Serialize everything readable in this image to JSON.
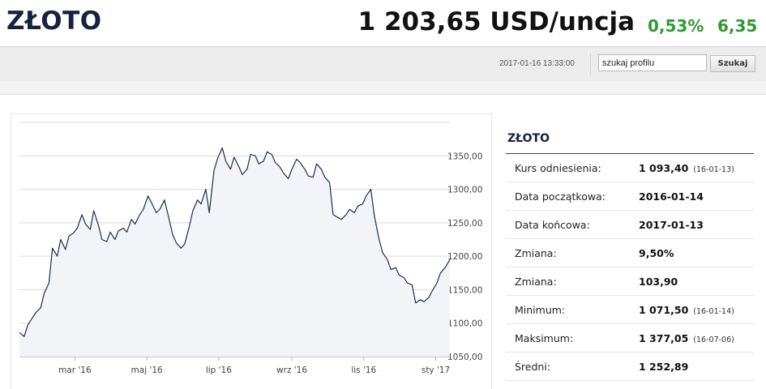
{
  "header": {
    "title": "ZŁOTO",
    "price": "1 203,65 USD/uncja",
    "change_pct": "0,53%",
    "change_abs": "6,35"
  },
  "info_bar": {
    "timestamp": "2017-01-16 13:33:00",
    "search_value": "szukaj profilu",
    "search_button": "Szukaj"
  },
  "colors": {
    "title": "#14233f",
    "positive_change": "#2f9a33",
    "chart_line": "#1f2d4a",
    "chart_fill": "#f2f4f8"
  },
  "stats": {
    "title": "ZŁOTO",
    "rows": [
      {
        "label": "Kurs odniesienia:",
        "value": "1 093,40",
        "date": "(16-01-13)"
      },
      {
        "label": "Data początkowa:",
        "value": "2016-01-14",
        "date": ""
      },
      {
        "label": "Data końcowa:",
        "value": "2017-01-13",
        "date": ""
      },
      {
        "label": "Zmiana:",
        "value": "9,50%",
        "date": ""
      },
      {
        "label": "Zmiana:",
        "value": "103,90",
        "date": ""
      },
      {
        "label": "Minimum:",
        "value": "1 071,50",
        "date": "(16-01-14)"
      },
      {
        "label": "Maksimum:",
        "value": "1 377,05",
        "date": "(16-07-06)"
      },
      {
        "label": "Średni:",
        "value": "1 252,89",
        "date": ""
      }
    ]
  },
  "chart_data": {
    "type": "area",
    "title": "",
    "xlabel": "",
    "ylabel": "",
    "ylim": [
      1050,
      1400
    ],
    "yticks": [
      1050,
      1100,
      1150,
      1200,
      1250,
      1300,
      1350
    ],
    "ytick_labels": [
      "1050,00",
      "1100,00",
      "1150,00",
      "1200,00",
      "1250,00",
      "1300,00",
      "1350,00"
    ],
    "xtick_labels": [
      "mar '16",
      "maj '16",
      "lip '16",
      "wrz '16",
      "lis '16",
      "sty '17"
    ],
    "xtick_dates": [
      "2016-03-01",
      "2016-05-01",
      "2016-07-01",
      "2016-09-01",
      "2016-11-01",
      "2017-01-01"
    ],
    "x_start": "2016-01-14",
    "x_end": "2017-01-13",
    "grid": true,
    "series": [
      {
        "x": [
          "2016-01-14",
          "2016-01-18",
          "2016-01-21",
          "2016-01-25",
          "2016-01-28",
          "2016-02-01",
          "2016-02-04",
          "2016-02-08",
          "2016-02-11",
          "2016-02-15",
          "2016-02-18",
          "2016-02-22",
          "2016-02-25",
          "2016-02-29",
          "2016-03-03",
          "2016-03-07",
          "2016-03-10",
          "2016-03-14",
          "2016-03-17",
          "2016-03-21",
          "2016-03-24",
          "2016-03-28",
          "2016-03-31",
          "2016-04-04",
          "2016-04-07",
          "2016-04-11",
          "2016-04-14",
          "2016-04-18",
          "2016-04-21",
          "2016-04-25",
          "2016-04-28",
          "2016-05-02",
          "2016-05-05",
          "2016-05-09",
          "2016-05-12",
          "2016-05-16",
          "2016-05-19",
          "2016-05-23",
          "2016-05-26",
          "2016-05-30",
          "2016-06-02",
          "2016-06-06",
          "2016-06-09",
          "2016-06-13",
          "2016-06-16",
          "2016-06-20",
          "2016-06-23",
          "2016-06-27",
          "2016-06-30",
          "2016-07-04",
          "2016-07-07",
          "2016-07-11",
          "2016-07-14",
          "2016-07-18",
          "2016-07-21",
          "2016-07-25",
          "2016-07-28",
          "2016-08-01",
          "2016-08-04",
          "2016-08-08",
          "2016-08-11",
          "2016-08-15",
          "2016-08-18",
          "2016-08-22",
          "2016-08-25",
          "2016-08-29",
          "2016-09-01",
          "2016-09-05",
          "2016-09-08",
          "2016-09-12",
          "2016-09-15",
          "2016-09-19",
          "2016-09-22",
          "2016-09-26",
          "2016-09-29",
          "2016-10-03",
          "2016-10-06",
          "2016-10-10",
          "2016-10-13",
          "2016-10-17",
          "2016-10-20",
          "2016-10-24",
          "2016-10-27",
          "2016-10-31",
          "2016-11-03",
          "2016-11-07",
          "2016-11-10",
          "2016-11-14",
          "2016-11-17",
          "2016-11-21",
          "2016-11-24",
          "2016-11-28",
          "2016-12-01",
          "2016-12-05",
          "2016-12-08",
          "2016-12-12",
          "2016-12-15",
          "2016-12-19",
          "2016-12-22",
          "2016-12-26",
          "2016-12-29",
          "2017-01-02",
          "2017-01-05",
          "2017-01-09",
          "2017-01-13"
        ],
        "values": [
          1086,
          1080,
          1097,
          1108,
          1116,
          1123,
          1145,
          1160,
          1212,
          1200,
          1225,
          1210,
          1230,
          1235,
          1242,
          1262,
          1248,
          1240,
          1268,
          1246,
          1225,
          1222,
          1236,
          1225,
          1238,
          1242,
          1236,
          1255,
          1248,
          1262,
          1270,
          1290,
          1280,
          1265,
          1270,
          1284,
          1262,
          1232,
          1220,
          1212,
          1218,
          1244,
          1268,
          1284,
          1278,
          1300,
          1265,
          1328,
          1346,
          1362,
          1342,
          1330,
          1348,
          1334,
          1322,
          1330,
          1352,
          1350,
          1338,
          1342,
          1356,
          1352,
          1340,
          1333,
          1324,
          1316,
          1330,
          1345,
          1340,
          1330,
          1320,
          1318,
          1338,
          1330,
          1318,
          1310,
          1262,
          1258,
          1255,
          1262,
          1270,
          1265,
          1275,
          1278,
          1290,
          1300,
          1260,
          1225,
          1205,
          1195,
          1180,
          1183,
          1172,
          1168,
          1160,
          1157,
          1130,
          1135,
          1132,
          1138,
          1148,
          1160,
          1175,
          1183,
          1195
        ]
      }
    ]
  }
}
